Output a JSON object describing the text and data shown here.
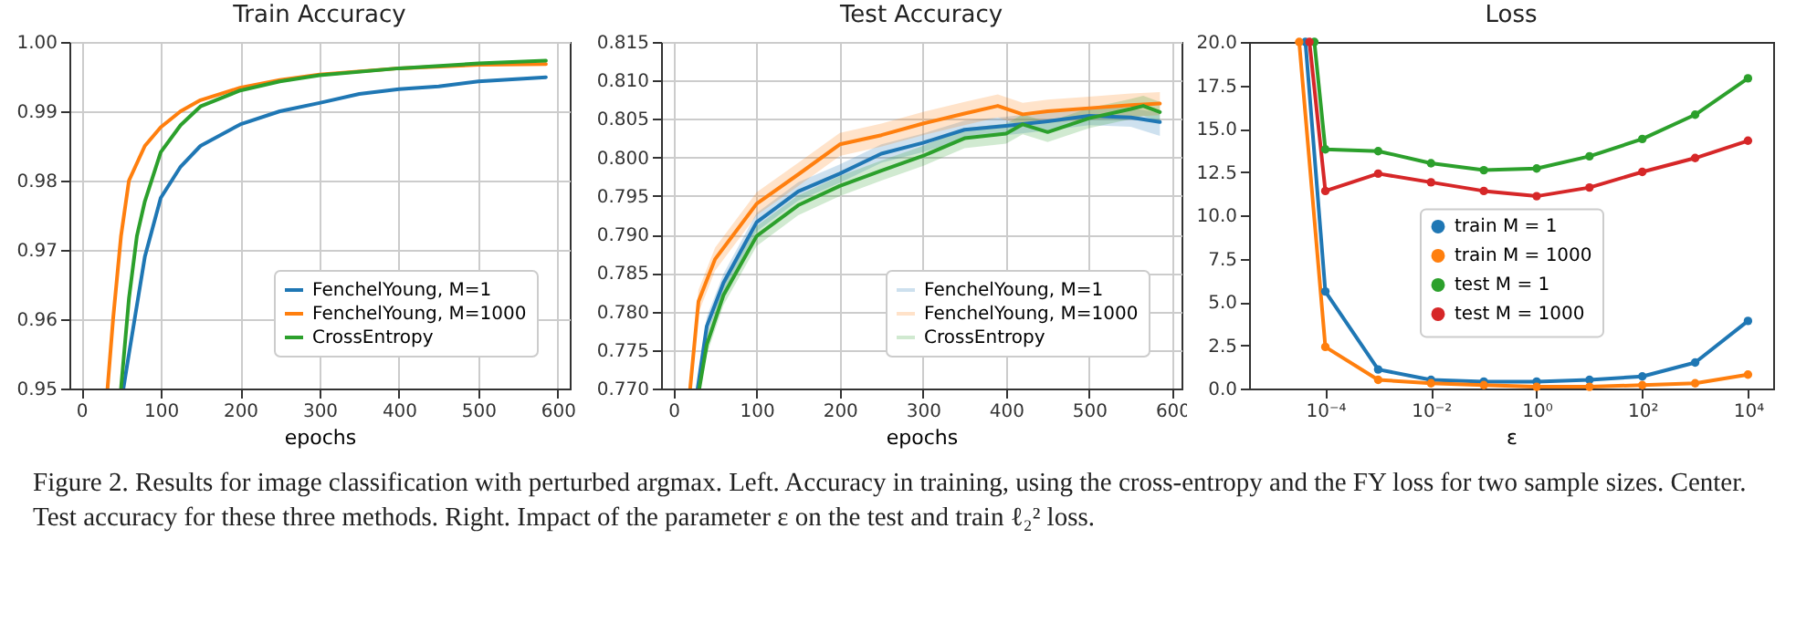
{
  "chart_data": [
    {
      "type": "line",
      "title": "Train Accuracy",
      "xlabel": "epochs",
      "xlim": [
        -15,
        615
      ],
      "xticks": [
        0,
        100,
        200,
        300,
        400,
        500,
        600
      ],
      "ylim": [
        0.95,
        1.0
      ],
      "yticks": [
        0.95,
        0.96,
        0.97,
        0.98,
        0.99,
        {
          "value": 1.0,
          "label": "1.00"
        }
      ],
      "grid": true,
      "legend": "bottom right",
      "annotations": [
        "Figure 2. Results for image classification with perturbed argmax. Left. Accuracy in training, using the cross-entropy and the FY loss for two sample sizes. Center. Test accuracy for these three methods. Right. Impact of the parameter ε on the test and train ℓ₂² loss."
      ],
      "series": [
        {
          "name": "FenchelYoung, M=1",
          "color": "#1f77b4",
          "x": [
            53,
            60,
            70,
            80,
            100,
            125,
            150,
            200,
            250,
            300,
            350,
            400,
            450,
            500,
            585
          ],
          "values": [
            0.95,
            0.955,
            0.962,
            0.969,
            0.9775,
            0.982,
            0.985,
            0.9881,
            0.99,
            0.9912,
            0.9925,
            0.9932,
            0.9936,
            0.9943,
            0.9949
          ]
        },
        {
          "name": "FenchelYoung, M=1000",
          "color": "#ff7f0e",
          "x": [
            33,
            40,
            50,
            60,
            80,
            100,
            125,
            150,
            200,
            250,
            300,
            400,
            500,
            585
          ],
          "values": [
            0.95,
            0.96,
            0.972,
            0.98,
            0.985,
            0.9877,
            0.99,
            0.9916,
            0.9934,
            0.9945,
            0.9953,
            0.9962,
            0.9967,
            0.9968
          ]
        },
        {
          "name": "CrossEntropy",
          "color": "#2ca02c",
          "x": [
            50,
            60,
            70,
            80,
            100,
            125,
            150,
            200,
            250,
            300,
            400,
            500,
            585
          ],
          "values": [
            0.95,
            0.963,
            0.972,
            0.977,
            0.9841,
            0.988,
            0.9907,
            0.993,
            0.9943,
            0.9952,
            0.9962,
            0.9969,
            0.9973
          ]
        }
      ]
    },
    {
      "type": "line",
      "title": "Test Accuracy",
      "xlabel": "epochs",
      "xlim": [
        -15,
        611
      ],
      "xticks": [
        0,
        100,
        200,
        300,
        400,
        500,
        600
      ],
      "ylim": [
        0.77,
        0.815
      ],
      "yticks": [
        {
          "value": 0.77,
          "label": "0.770"
        },
        0.775,
        {
          "value": 0.78,
          "label": "0.780"
        },
        0.785,
        {
          "value": 0.79,
          "label": "0.790"
        },
        0.795,
        {
          "value": 0.8,
          "label": "0.800"
        },
        0.805,
        {
          "value": 0.81,
          "label": "0.810"
        },
        0.815
      ],
      "grid": true,
      "legend": "bottom right",
      "series": [
        {
          "name": "FenchelYoung, M=1",
          "color": "#1f77b4",
          "x": [
            29,
            40,
            60,
            100,
            150,
            200,
            250,
            300,
            350,
            400,
            450,
            500,
            550,
            585
          ],
          "values": [
            0.77,
            0.7781,
            0.7837,
            0.7916,
            0.7956,
            0.7979,
            0.8005,
            0.8019,
            0.8036,
            0.8041,
            0.8047,
            0.8054,
            0.8052,
            0.8046
          ],
          "lower": [
            0.77,
            0.7769,
            0.7825,
            0.7904,
            0.7944,
            0.7967,
            0.7993,
            0.8007,
            0.8024,
            0.8029,
            0.8035,
            0.8042,
            0.804,
            0.8028
          ],
          "upper": [
            0.7712,
            0.7793,
            0.7849,
            0.7928,
            0.7968,
            0.7991,
            0.8017,
            0.8031,
            0.8048,
            0.8053,
            0.8059,
            0.8066,
            0.8064,
            0.8058
          ]
        },
        {
          "name": "FenchelYoung, M=1000",
          "color": "#ff7f0e",
          "x": [
            20,
            30,
            50,
            100,
            150,
            200,
            250,
            300,
            350,
            390,
            420,
            450,
            500,
            550,
            585
          ],
          "values": [
            0.77,
            0.7813,
            0.7868,
            0.794,
            0.7978,
            0.8017,
            0.8029,
            0.8044,
            0.8057,
            0.8067,
            0.8056,
            0.806,
            0.8064,
            0.8068,
            0.807
          ],
          "lower": [
            0.77,
            0.7798,
            0.7853,
            0.7925,
            0.7963,
            0.8002,
            0.8014,
            0.8029,
            0.8042,
            0.8052,
            0.8041,
            0.8045,
            0.8049,
            0.8053,
            0.8055
          ],
          "upper": [
            0.7715,
            0.7828,
            0.7883,
            0.7955,
            0.7993,
            0.8032,
            0.8044,
            0.8059,
            0.8072,
            0.8082,
            0.8071,
            0.8075,
            0.8079,
            0.8083,
            0.8085
          ]
        },
        {
          "name": "CrossEntropy",
          "color": "#2ca02c",
          "x": [
            31,
            40,
            60,
            100,
            150,
            200,
            250,
            300,
            350,
            400,
            420,
            450,
            500,
            550,
            565,
            585
          ],
          "values": [
            0.77,
            0.7757,
            0.7821,
            0.7898,
            0.7938,
            0.7963,
            0.7983,
            0.8002,
            0.8025,
            0.8031,
            0.8043,
            0.8033,
            0.8051,
            0.8063,
            0.8067,
            0.8059
          ],
          "lower": [
            0.77,
            0.7744,
            0.7808,
            0.7885,
            0.7925,
            0.795,
            0.797,
            0.7989,
            0.8012,
            0.8018,
            0.803,
            0.802,
            0.8038,
            0.805,
            0.8054,
            0.8046
          ],
          "upper": [
            0.7713,
            0.777,
            0.7834,
            0.7911,
            0.7951,
            0.7976,
            0.7996,
            0.8015,
            0.8038,
            0.8044,
            0.8056,
            0.8046,
            0.8064,
            0.8076,
            0.808,
            0.8072
          ]
        }
      ]
    },
    {
      "type": "line",
      "title": "Loss",
      "xlabel": "ε",
      "log": "x",
      "xlim": [
        3.6e-06,
        30000
      ],
      "xticks": [
        {
          "value": 0.0001,
          "label": "10⁻⁴"
        },
        {
          "value": 0.01,
          "label": "10⁻²"
        },
        {
          "value": 1,
          "label": "10⁰"
        },
        {
          "value": 100,
          "label": "10²"
        },
        {
          "value": 10000,
          "label": "10⁴"
        }
      ],
      "ylim": [
        0,
        20
      ],
      "yticks": [
        {
          "value": 0,
          "label": "0.0"
        },
        2.5,
        {
          "value": 5,
          "label": "5.0"
        },
        7.5,
        {
          "value": 10,
          "label": "10.0"
        },
        12.5,
        {
          "value": 15,
          "label": "15.0"
        },
        17.5,
        {
          "value": 20,
          "label": "20.0"
        }
      ],
      "legend": "center",
      "marker": "circle",
      "series": [
        {
          "name": "train M = 1",
          "color": "#1f77b4",
          "x": [
            4.2e-05,
            0.0001,
            0.001,
            0.01,
            0.1,
            1,
            10,
            100,
            1000,
            10000
          ],
          "values": [
            20,
            5.6,
            1.1,
            0.5,
            0.4,
            0.4,
            0.5,
            0.7,
            1.5,
            3.9
          ]
        },
        {
          "name": "train M = 1000",
          "color": "#ff7f0e",
          "x": [
            3.2e-05,
            0.0001,
            0.001,
            0.01,
            0.1,
            1,
            10,
            100,
            1000,
            10000
          ],
          "values": [
            20,
            2.4,
            0.5,
            0.3,
            0.2,
            0.1,
            0.1,
            0.2,
            0.3,
            0.8
          ]
        },
        {
          "name": "test M = 1",
          "color": "#2ca02c",
          "x": [
            6.2e-05,
            0.0001,
            0.001,
            0.01,
            0.1,
            1,
            10,
            100,
            1000,
            10000
          ],
          "values": [
            20,
            13.8,
            13.7,
            13.0,
            12.6,
            12.7,
            13.4,
            14.4,
            15.8,
            17.9
          ]
        },
        {
          "name": "test M = 1000",
          "color": "#d62728",
          "x": [
            5e-05,
            0.0001,
            0.001,
            0.01,
            0.1,
            1,
            10,
            100,
            1000,
            10000
          ],
          "values": [
            20,
            11.4,
            12.4,
            11.9,
            11.4,
            11.1,
            11.6,
            12.5,
            13.3,
            14.3
          ]
        }
      ]
    }
  ]
}
